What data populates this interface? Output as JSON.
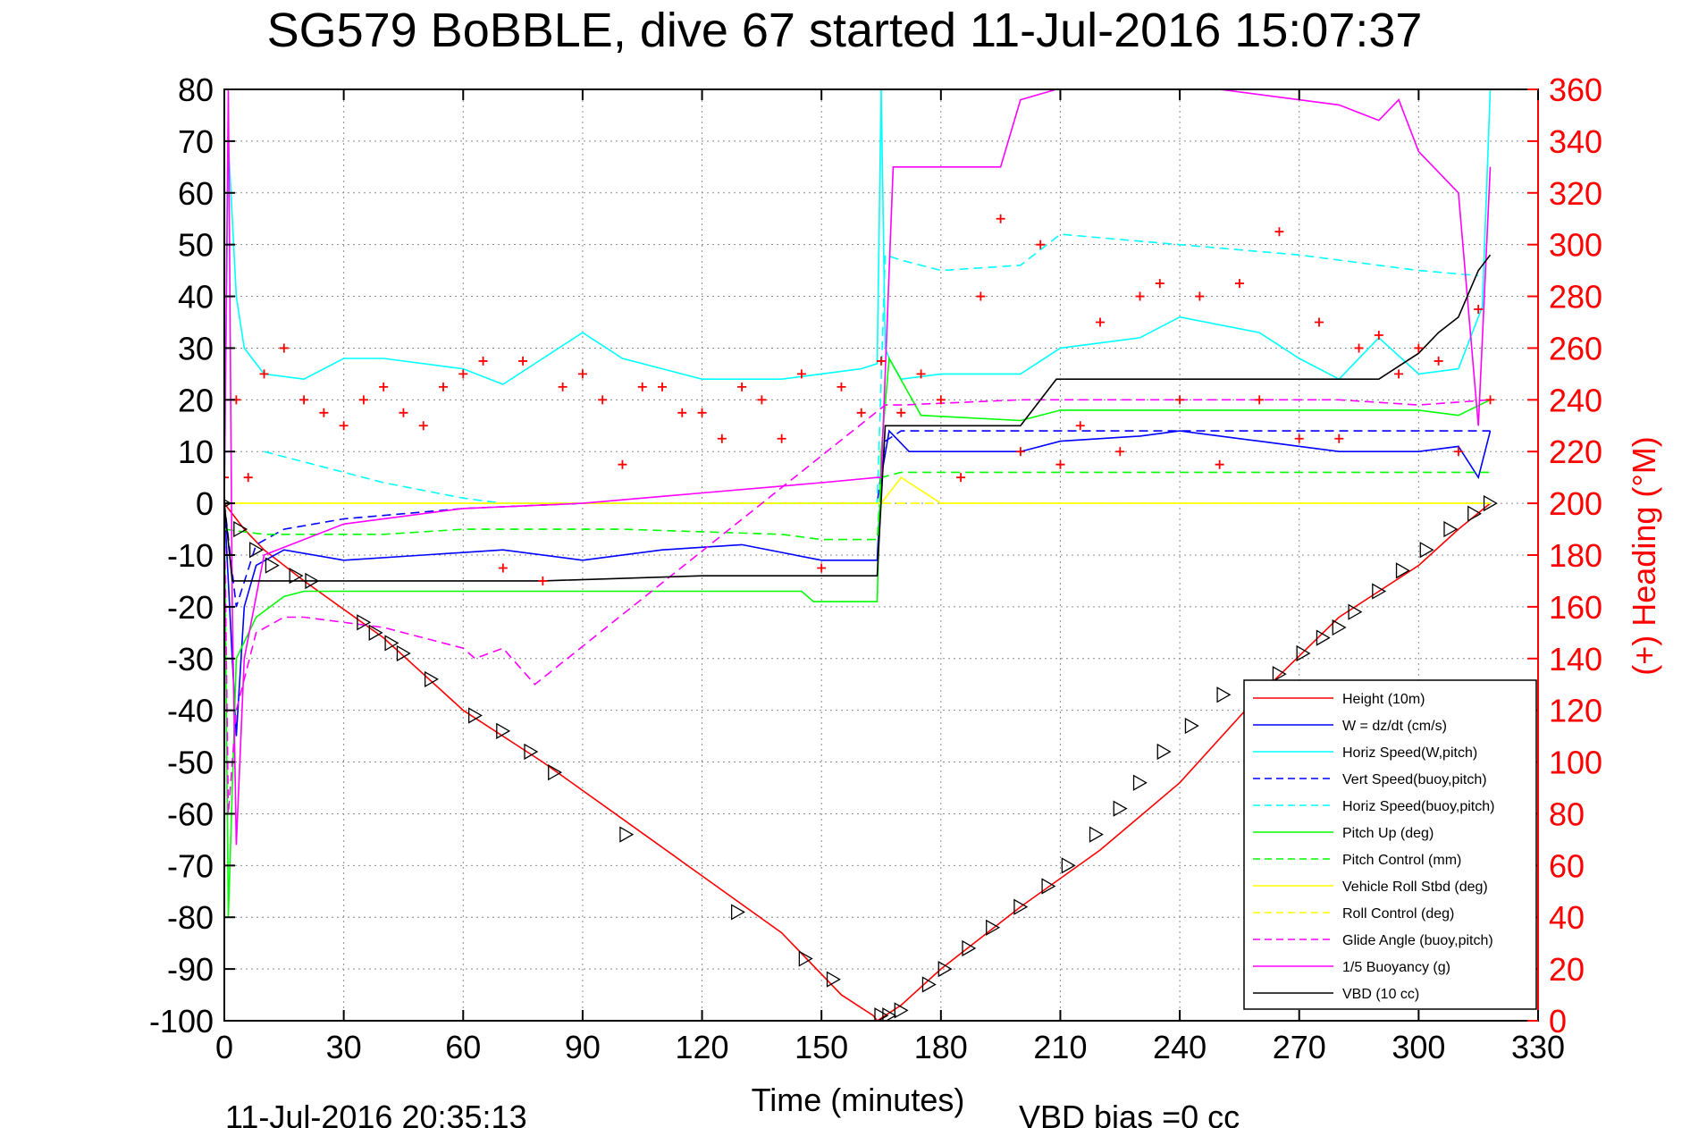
{
  "chart_data": {
    "type": "line",
    "title": "SG579 BoBBLE, dive 67 started 11-Jul-2016 15:07:37",
    "xlabel": "Time (minutes)",
    "ylabel": "",
    "y2label": "(+) Heading (°M)",
    "xlim": [
      0,
      330
    ],
    "ylim": [
      -100,
      80
    ],
    "y2lim": [
      0,
      360
    ],
    "xticks": [
      0,
      30,
      60,
      90,
      120,
      150,
      180,
      210,
      240,
      270,
      300,
      330
    ],
    "yticks": [
      80,
      70,
      60,
      50,
      40,
      30,
      20,
      10,
      0,
      -10,
      -20,
      -30,
      -40,
      -50,
      -60,
      -70,
      -80,
      -90,
      -100
    ],
    "y2ticks": [
      360,
      340,
      320,
      300,
      280,
      260,
      240,
      220,
      200,
      180,
      160,
      140,
      120,
      100,
      80,
      60,
      40,
      20,
      0
    ],
    "grid": true,
    "legend_position": "lower-right",
    "footer_left": "11-Jul-2016 20:35:13",
    "footer_right": "VBD bias =0 cc",
    "series": [
      {
        "name": "Height (10m)",
        "color": "#ff0000",
        "style": "solid",
        "x": [
          0,
          5,
          10,
          20,
          40,
          60,
          80,
          100,
          120,
          140,
          155,
          163,
          164,
          166,
          170,
          180,
          200,
          220,
          240,
          260,
          280,
          300,
          310,
          318
        ],
        "y": [
          0,
          -5,
          -9,
          -15,
          -26,
          -40,
          -50,
          -61,
          -72,
          -83,
          -95,
          -99,
          -100,
          -99,
          -97,
          -90,
          -78,
          -67,
          -54,
          -37,
          -22,
          -12,
          -5,
          0
        ]
      },
      {
        "name": "W = dz/dt (cm/s)",
        "color": "#0000ff",
        "style": "solid",
        "x": [
          0,
          2,
          3,
          5,
          8,
          15,
          30,
          50,
          70,
          90,
          110,
          130,
          150,
          164,
          165,
          167,
          172,
          180,
          200,
          210,
          230,
          240,
          260,
          280,
          300,
          310,
          315,
          318
        ],
        "y": [
          0,
          -30,
          -45,
          -20,
          -12,
          -9,
          -11,
          -10,
          -9,
          -11,
          -9,
          -8,
          -11,
          -11,
          5,
          14,
          10,
          10,
          10,
          12,
          13,
          14,
          12,
          10,
          10,
          11,
          5,
          14
        ]
      },
      {
        "name": "Horiz Speed(W,pitch)",
        "color": "#00ffff",
        "style": "solid",
        "x": [
          0,
          1,
          2,
          3,
          5,
          10,
          20,
          30,
          40,
          60,
          70,
          80,
          90,
          100,
          120,
          140,
          160,
          164,
          165,
          166,
          167,
          170,
          180,
          200,
          210,
          230,
          240,
          260,
          270,
          280,
          290,
          300,
          310,
          316,
          318
        ],
        "y": [
          0,
          70,
          55,
          40,
          30,
          25,
          24,
          28,
          28,
          26,
          23,
          28,
          33,
          28,
          24,
          24,
          26,
          27,
          80,
          30,
          28,
          24,
          25,
          25,
          30,
          32,
          36,
          33,
          28,
          24,
          32,
          25,
          26,
          38,
          80
        ]
      },
      {
        "name": "Vert Speed(buoy,pitch)",
        "color": "#0000ff",
        "style": "dashed",
        "x": [
          0,
          3,
          8,
          15,
          30,
          60,
          90,
          120,
          150,
          164,
          166,
          170,
          200,
          240,
          280,
          310,
          318
        ],
        "y": [
          0,
          -20,
          -8,
          -5,
          -3,
          -1,
          0,
          0,
          0,
          0,
          12,
          14,
          14,
          14,
          14,
          14,
          14
        ]
      },
      {
        "name": "Horiz Speed(buoy,pitch)",
        "color": "#00ffff",
        "style": "dashed",
        "x": [
          10,
          20,
          40,
          60,
          70,
          164,
          166,
          170,
          180,
          200,
          210,
          240,
          270,
          300,
          315
        ],
        "y": [
          10,
          8,
          4,
          1,
          0,
          0,
          48,
          47,
          45,
          46,
          52,
          50,
          48,
          45,
          44
        ]
      },
      {
        "name": "Pitch Up (deg)",
        "color": "#00ff00",
        "style": "solid",
        "x": [
          0,
          1,
          3,
          8,
          15,
          20,
          40,
          60,
          80,
          100,
          120,
          145,
          148,
          164,
          165,
          167,
          175,
          200,
          210,
          240,
          270,
          300,
          310,
          318
        ],
        "y": [
          0,
          -80,
          -30,
          -22,
          -18,
          -17,
          -17,
          -17,
          -17,
          -17,
          -17,
          -17,
          -19,
          -19,
          10,
          28,
          17,
          16,
          18,
          18,
          18,
          18,
          17,
          20
        ]
      },
      {
        "name": "Pitch Control (mm)",
        "color": "#00ff00",
        "style": "dashed",
        "x": [
          0,
          10,
          20,
          40,
          60,
          80,
          100,
          140,
          150,
          164,
          165,
          170,
          180,
          200,
          300,
          318
        ],
        "y": [
          -5,
          -6,
          -6,
          -6,
          -5,
          -5,
          -5,
          -6,
          -7,
          -7,
          5,
          6,
          6,
          6,
          6,
          6
        ]
      },
      {
        "name": "Vehicle Roll Stbd (deg)",
        "color": "#ffff00",
        "style": "solid",
        "x": [
          0,
          20,
          40,
          60,
          80,
          100,
          120,
          140,
          164,
          165,
          170,
          180,
          200,
          240,
          280,
          300,
          318
        ],
        "y": [
          0,
          0,
          0,
          0,
          0,
          0,
          0,
          0,
          0,
          0,
          5,
          0,
          0,
          0,
          0,
          0,
          0
        ]
      },
      {
        "name": "Roll Control (deg)",
        "color": "#ffff00",
        "style": "dashed",
        "x": [
          0,
          50,
          100,
          164,
          165,
          200,
          250,
          300,
          318
        ],
        "y": [
          0,
          0,
          0,
          0,
          0,
          0,
          0,
          0,
          0
        ]
      },
      {
        "name": "Glide Angle (buoy,pitch)",
        "color": "#ff00ff",
        "style": "dashed",
        "x": [
          0,
          1,
          3,
          8,
          15,
          20,
          40,
          60,
          63,
          70,
          78,
          166,
          170,
          200,
          240,
          280,
          300,
          318
        ],
        "y": [
          0,
          -60,
          -40,
          -25,
          -22,
          -22,
          -24,
          -28,
          -30,
          -28,
          -35,
          19,
          19,
          20,
          20,
          20,
          19,
          20
        ]
      },
      {
        "name": "1/5 Buoyancy (g)",
        "color": "#ff00ff",
        "style": "solid",
        "x": [
          0,
          1,
          2,
          3,
          5,
          10,
          30,
          60,
          90,
          120,
          150,
          164,
          165,
          168,
          170,
          180,
          195,
          200,
          209,
          250,
          280,
          290,
          295,
          300,
          310,
          315,
          318
        ],
        "y": [
          0,
          80,
          -20,
          -66,
          -30,
          -10,
          -4,
          -1,
          0,
          2,
          4,
          5,
          5,
          65,
          65,
          65,
          65,
          78,
          80,
          80,
          77,
          74,
          78,
          68,
          60,
          15,
          65
        ]
      },
      {
        "name": "VBD (10 cc)",
        "color": "#000000",
        "style": "solid",
        "x": [
          0,
          2,
          5,
          10,
          20,
          40,
          80,
          120,
          164,
          166,
          170,
          200,
          209,
          210,
          250,
          290,
          300,
          305,
          310,
          315,
          318
        ],
        "y": [
          0,
          -15,
          -15,
          -15,
          -15,
          -15,
          -15,
          -14,
          -14,
          15,
          15,
          15,
          24,
          24,
          24,
          24,
          29,
          33,
          36,
          45,
          48
        ]
      },
      {
        "name": "",
        "color": "#ff0000",
        "style": "plus",
        "axis": "right",
        "x": [
          0,
          3,
          6,
          10,
          15,
          20,
          25,
          30,
          35,
          40,
          45,
          50,
          55,
          60,
          65,
          70,
          75,
          80,
          85,
          90,
          95,
          100,
          105,
          110,
          115,
          120,
          125,
          130,
          135,
          140,
          145,
          150,
          155,
          160,
          165,
          170,
          175,
          180,
          185,
          190,
          195,
          200,
          205,
          210,
          215,
          220,
          225,
          230,
          235,
          240,
          245,
          250,
          255,
          260,
          265,
          270,
          275,
          280,
          285,
          290,
          295,
          300,
          305,
          310,
          315,
          318
        ],
        "y": [
          210,
          240,
          210,
          250,
          260,
          240,
          235,
          230,
          240,
          245,
          235,
          230,
          245,
          250,
          255,
          175,
          255,
          170,
          245,
          250,
          240,
          215,
          245,
          245,
          235,
          235,
          225,
          245,
          240,
          225,
          250,
          175,
          245,
          235,
          255,
          235,
          250,
          240,
          210,
          280,
          310,
          220,
          300,
          215,
          230,
          270,
          220,
          280,
          285,
          240,
          280,
          215,
          285,
          240,
          305,
          225,
          270,
          225,
          260,
          265,
          250,
          260,
          255,
          220,
          275,
          240
        ]
      },
      {
        "name": "",
        "color": "#000000",
        "style": "triangle-marker",
        "x": [
          0,
          4,
          8,
          12,
          18,
          22,
          35,
          38,
          42,
          45,
          52,
          63,
          70,
          77,
          83,
          101,
          129,
          146,
          153,
          165,
          167,
          170,
          177,
          181,
          187,
          193,
          200,
          207,
          212,
          219,
          225,
          230,
          236,
          243,
          251,
          265,
          271,
          276,
          280,
          284,
          290,
          296,
          302,
          308,
          314,
          318
        ],
        "y": [
          0,
          -5,
          -9,
          -12,
          -14,
          -15,
          -23,
          -25,
          -27,
          -29,
          -34,
          -41,
          -44,
          -48,
          -52,
          -64,
          -79,
          -88,
          -92,
          -99,
          -99,
          -98,
          -93,
          -90,
          -86,
          -82,
          -78,
          -74,
          -70,
          -64,
          -59,
          -54,
          -48,
          -43,
          -37,
          -33,
          -29,
          -26,
          -24,
          -21,
          -17,
          -13,
          -9,
          -5,
          -2,
          0
        ]
      }
    ]
  }
}
